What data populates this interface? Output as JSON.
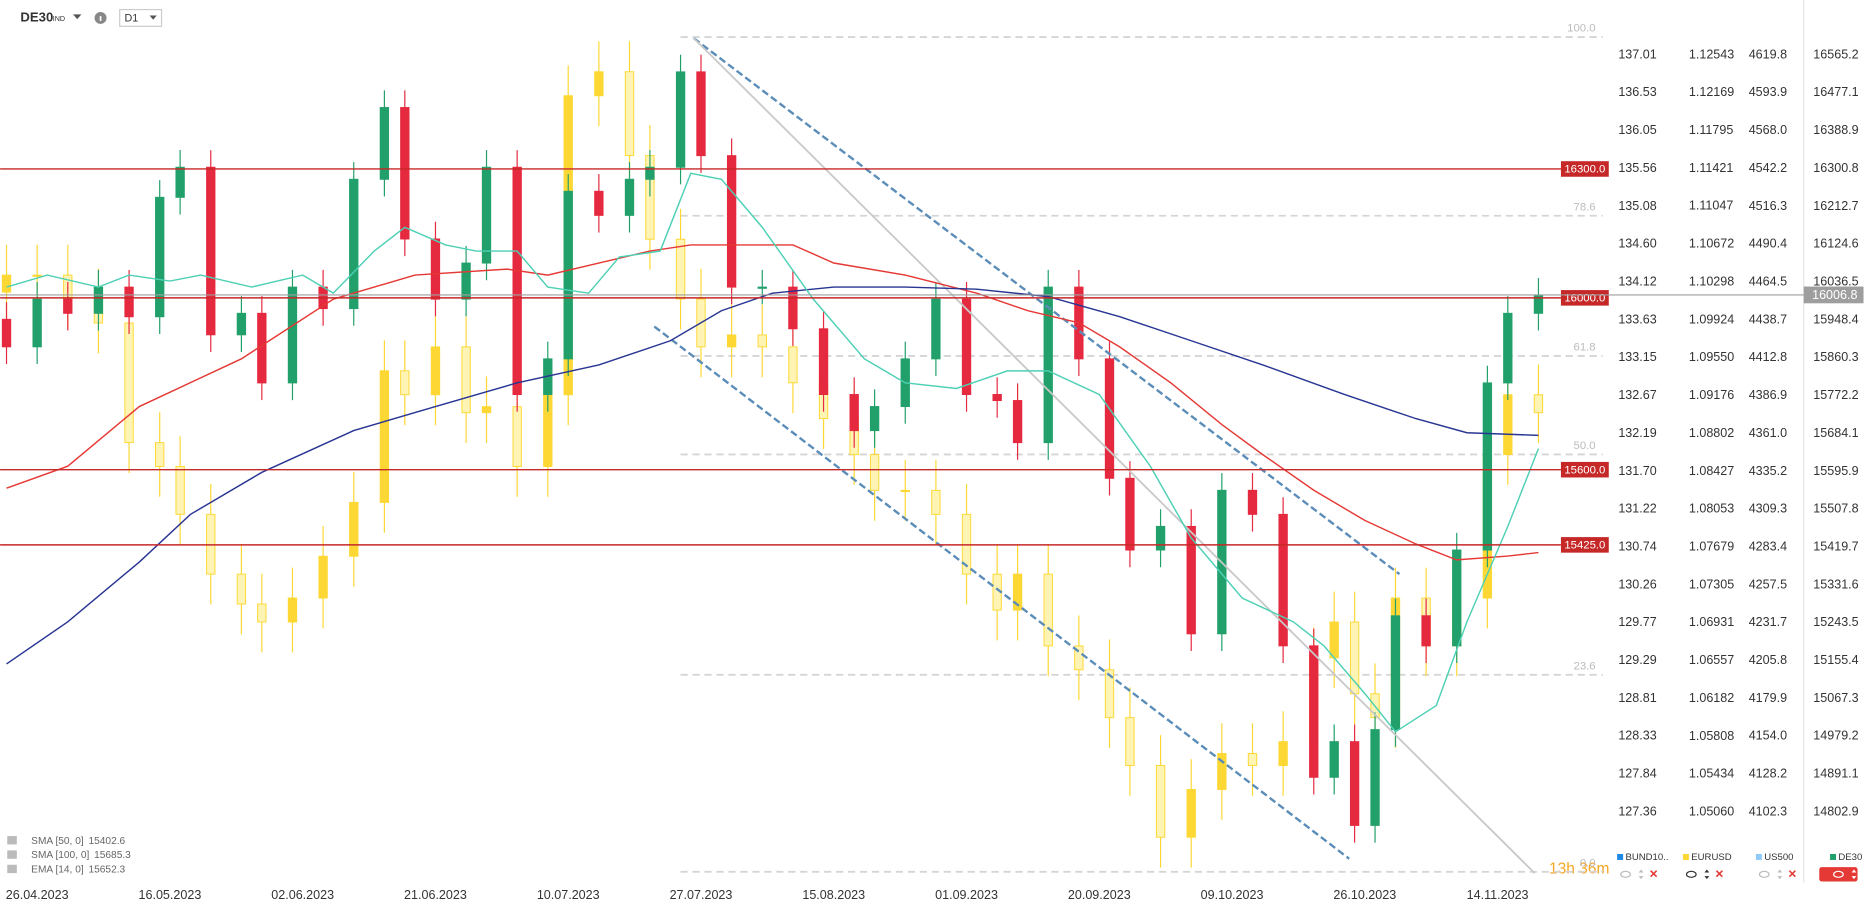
{
  "toolbar": {
    "symbol": "DE30",
    "market": "IND",
    "timeframe": "D1"
  },
  "status": {
    "timer": "13h 36m"
  },
  "chart_data": {
    "type": "candlestick",
    "xlim": [
      -3.63,
      153.3
    ],
    "xticks": [
      {
        "value": 0,
        "label": "26.04.2023"
      },
      {
        "value": 13,
        "label": "16.05.2023"
      },
      {
        "value": 26,
        "label": "02.06.2023"
      },
      {
        "value": 39,
        "label": "21.06.2023"
      },
      {
        "value": 52,
        "label": "10.07.2023"
      },
      {
        "value": 65,
        "label": "27.07.2023"
      },
      {
        "value": 78,
        "label": "15.08.2023"
      },
      {
        "value": 91,
        "label": "01.09.2023"
      },
      {
        "value": 104,
        "label": "20.09.2023"
      },
      {
        "value": 117,
        "label": "09.10.2023"
      },
      {
        "value": 130,
        "label": "26.10.2023"
      },
      {
        "value": 143,
        "label": "14.11.2023"
      }
    ],
    "ylim": [
      14638.7,
      16693.3
    ],
    "yticks": [
      16565.2,
      16477.1,
      16388.9,
      16300.8,
      16212.7,
      16124.6,
      16036.5,
      15948.4,
      15860.3,
      15772.2,
      15684.1,
      15595.9,
      15507.8,
      15419.7,
      15331.6,
      15243.5,
      15155.4,
      15067.3,
      14979.2,
      14891.1,
      14802.9
    ],
    "y2lim": [
      1.04364,
      1.13087
    ],
    "y2ticks": [
      1.12543,
      1.12169,
      1.11795,
      1.11421,
      1.11047,
      1.10672,
      1.10298,
      1.09924,
      {
        "value": 1.0955,
        "label": "1.09550"
      },
      1.09176,
      1.08802,
      1.08427,
      1.08053,
      1.07679,
      1.07305,
      1.06931,
      1.06557,
      1.06182,
      1.05808,
      1.05434,
      {
        "value": 1.0506,
        "label": "1.05060"
      }
    ],
    "series": [
      {
        "name": "DE30",
        "up_color": "#22a06b",
        "down_color": "#e5293f",
        "x": [
          -3,
          0,
          3,
          6,
          9,
          12,
          14,
          17,
          20,
          22,
          25,
          28,
          31,
          34,
          36,
          39,
          42,
          44,
          47,
          50,
          52,
          55,
          58,
          60,
          63,
          65,
          68,
          71,
          74,
          77,
          80,
          82,
          85,
          88,
          91,
          94,
          96,
          99,
          102,
          105,
          107,
          110,
          113,
          116,
          119,
          122,
          125,
          127,
          129,
          131,
          133,
          136,
          139,
          142,
          144,
          147
        ],
        "open": [
          15950,
          15886,
          15997,
          15964,
          16025,
          15956,
          16234,
          16304,
          15914,
          15964,
          15802,
          16025,
          15975,
          16276,
          16443,
          16137,
          15997,
          16081,
          16304,
          15775,
          15858,
          16248,
          16192,
          16276,
          16304,
          16526,
          16331,
          16025,
          16025,
          15928,
          15775,
          15691,
          15747,
          15858,
          15997,
          15775,
          15761,
          15663,
          16025,
          15858,
          15580,
          15413,
          15468,
          15218,
          15552,
          15496,
          15190,
          14884,
          14967,
          14772,
          14995,
          15260,
          15190,
          15413,
          15802,
          15964
        ],
        "high": [
          15990,
          16037,
          16037,
          16065,
          16065,
          16274,
          16344,
          16344,
          16004,
          16004,
          16065,
          16065,
          16316,
          16483,
          16483,
          16177,
          16121,
          16344,
          16344,
          15898,
          16288,
          16288,
          16316,
          16344,
          16566,
          16566,
          16371,
          16065,
          16065,
          15968,
          15815,
          15787,
          15898,
          16037,
          16037,
          15815,
          15801,
          16065,
          16065,
          15898,
          15620,
          15508,
          15508,
          15592,
          15592,
          15536,
          15230,
          15007,
          15007,
          15035,
          15300,
          15300,
          15453,
          15842,
          16004,
          16046
        ],
        "low": [
          15846,
          15846,
          15924,
          15924,
          15916,
          15916,
          16194,
          15874,
          15874,
          15762,
          15762,
          15935,
          15935,
          16236,
          16097,
          15957,
          15957,
          16041,
          15735,
          15735,
          15818,
          16152,
          16152,
          16236,
          16264,
          16291,
          15985,
          15985,
          15888,
          15735,
          15651,
          15651,
          15707,
          15818,
          15735,
          15721,
          15623,
          15623,
          15818,
          15540,
          15373,
          15373,
          15178,
          15178,
          15456,
          15150,
          14844,
          14844,
          14732,
          14732,
          14955,
          15150,
          15150,
          15373,
          15762,
          15924
        ],
        "close": [
          15886,
          15997,
          15964,
          16025,
          15956,
          16234,
          16304,
          15914,
          15964,
          15802,
          16025,
          15975,
          16276,
          16443,
          16137,
          15997,
          16081,
          16304,
          15775,
          15858,
          16248,
          16192,
          16276,
          16304,
          16526,
          16331,
          16025,
          16025,
          15928,
          15775,
          15691,
          15747,
          15858,
          15997,
          15775,
          15761,
          15663,
          16025,
          15858,
          15580,
          15413,
          15468,
          15218,
          15552,
          15496,
          15190,
          14884,
          14967,
          14772,
          14995,
          15260,
          15190,
          15413,
          15802,
          15964,
          16006
        ]
      },
      {
        "name": "EURUSD",
        "color": "#fdd835",
        "axis": "y2",
        "x": [
          -3,
          0,
          3,
          6,
          9,
          12,
          14,
          17,
          20,
          22,
          25,
          28,
          31,
          34,
          36,
          39,
          42,
          44,
          47,
          50,
          52,
          55,
          58,
          60,
          63,
          65,
          68,
          71,
          74,
          77,
          80,
          82,
          85,
          88,
          91,
          94,
          96,
          99,
          102,
          105,
          107,
          110,
          113,
          116,
          119,
          122,
          125,
          127,
          129,
          131,
          133,
          136,
          139,
          142,
          144,
          147
        ],
        "open": [
          1.102,
          1.10368,
          1.10368,
          1.10132,
          1.09895,
          1.08713,
          1.08477,
          1.08004,
          1.07413,
          1.07118,
          1.0694,
          1.07177,
          1.0759,
          1.08122,
          1.09423,
          1.09186,
          1.09659,
          1.09009,
          1.09068,
          1.08477,
          1.09186,
          1.12141,
          1.12378,
          1.1155,
          1.10723,
          1.10132,
          1.09659,
          1.09777,
          1.09659,
          1.09304,
          1.0895,
          1.08595,
          1.08241,
          1.08241,
          1.08004,
          1.07413,
          1.07058,
          1.07413,
          1.06704,
          1.06468,
          1.05995,
          1.05522,
          1.04813,
          1.05285,
          1.0564,
          1.05522,
          1.05758,
          1.06586,
          1.0694,
          1.06231,
          1.05995,
          1.07177,
          1.06704,
          1.07177,
          1.08595,
          1.09186
        ],
        "high": [
          1.10668,
          1.10668,
          1.10668,
          1.10432,
          1.10195,
          1.09013,
          1.08777,
          1.08304,
          1.07713,
          1.07418,
          1.07477,
          1.0789,
          1.08422,
          1.09723,
          1.09723,
          1.09959,
          1.09959,
          1.09368,
          1.09368,
          1.09486,
          1.12441,
          1.12678,
          1.12678,
          1.1185,
          1.11023,
          1.10432,
          1.10077,
          1.10077,
          1.09959,
          1.09604,
          1.0925,
          1.08895,
          1.08541,
          1.08541,
          1.08304,
          1.07713,
          1.07713,
          1.07713,
          1.07004,
          1.06768,
          1.06295,
          1.05822,
          1.05585,
          1.0594,
          1.0594,
          1.06058,
          1.06886,
          1.0724,
          1.0724,
          1.06531,
          1.07477,
          1.07477,
          1.07477,
          1.08895,
          1.09486,
          1.09486
        ],
        "low": [
          1.099,
          1.10068,
          1.09832,
          1.09595,
          1.08413,
          1.08177,
          1.07704,
          1.07113,
          1.06818,
          1.0664,
          1.0664,
          1.06877,
          1.0729,
          1.07822,
          1.08886,
          1.08886,
          1.08709,
          1.08709,
          1.08177,
          1.08177,
          1.08886,
          1.11841,
          1.1125,
          1.10423,
          1.09832,
          1.09359,
          1.09359,
          1.09359,
          1.09004,
          1.0865,
          1.08295,
          1.07941,
          1.07941,
          1.07704,
          1.07113,
          1.06758,
          1.06758,
          1.06404,
          1.06168,
          1.05695,
          1.05222,
          1.04513,
          1.04513,
          1.04985,
          1.05222,
          1.05222,
          1.05458,
          1.06286,
          1.05931,
          1.05695,
          1.05695,
          1.06404,
          1.06404,
          1.06877,
          1.08295,
          1.08709
        ],
        "close": [
          1.10368,
          1.10368,
          1.10132,
          1.09895,
          1.08713,
          1.08477,
          1.08004,
          1.07413,
          1.07118,
          1.0694,
          1.07177,
          1.0759,
          1.08122,
          1.09423,
          1.09186,
          1.09659,
          1.09009,
          1.09068,
          1.08477,
          1.09186,
          1.12141,
          1.12378,
          1.1155,
          1.10723,
          1.10132,
          1.09659,
          1.09777,
          1.09659,
          1.09304,
          1.0895,
          1.08595,
          1.08241,
          1.08241,
          1.08004,
          1.07413,
          1.07058,
          1.07413,
          1.06704,
          1.06468,
          1.05995,
          1.05522,
          1.04813,
          1.05285,
          1.0564,
          1.05522,
          1.05758,
          1.06586,
          1.0694,
          1.06231,
          1.05995,
          1.07177,
          1.06704,
          1.07177,
          1.08595,
          1.09186,
          1.09009
        ]
      }
    ],
    "hidden_series": [
      {
        "name": "BUND10..",
        "color": "#1e88e5",
        "ticks": [
          "137.01",
          "136.53",
          "136.05",
          "135.56",
          "135.08",
          "134.60",
          "134.12",
          "133.63",
          "133.15",
          "132.67",
          "132.19",
          "131.70",
          "131.22",
          "130.74",
          "130.26",
          "129.77",
          "129.29",
          "128.81",
          "128.33",
          "127.84",
          "127.36"
        ]
      },
      {
        "name": "US500",
        "color": "#90caf9",
        "ticks": [
          "4619.8",
          "4593.9",
          "4568.0",
          "4542.2",
          "4516.3",
          "4490.4",
          "4464.5",
          "4438.7",
          "4412.8",
          "4386.9",
          "4361.0",
          "4335.2",
          "4309.3",
          "4283.4",
          "4257.5",
          "4231.7",
          "4205.8",
          "4179.9",
          "4154.0",
          "4128.2",
          "4102.3"
        ]
      }
    ],
    "indicators": [
      {
        "name": "SMA [50, 0]",
        "value": 15402.6,
        "color": "#e53935",
        "x": [
          -3,
          3,
          10,
          20,
          29,
          37,
          46,
          50,
          55,
          60,
          64,
          69,
          74,
          78,
          85,
          92,
          97,
          102,
          106,
          111,
          116,
          120,
          125,
          130,
          135,
          139,
          144,
          147
        ],
        "values": [
          15557,
          15608,
          15747,
          15858,
          15997,
          16053,
          16067,
          16053,
          16081,
          16109,
          16123,
          16123,
          16123,
          16081,
          16053,
          16011,
          15970,
          15942,
          15886,
          15802,
          15705,
          15635,
          15552,
          15482,
          15427,
          15390,
          15399,
          15407
        ]
      },
      {
        "name": "SMA [100, 0]",
        "value": 15685.3,
        "color": "#283593",
        "x": [
          -3,
          3,
          10,
          15,
          22,
          31,
          39,
          47,
          55,
          62,
          67,
          72,
          78,
          85,
          92,
          99,
          106,
          113,
          120,
          128,
          135,
          140,
          147
        ],
        "values": [
          15148,
          15246,
          15385,
          15496,
          15594,
          15691,
          15747,
          15802,
          15844,
          15900,
          15970,
          16011,
          16025,
          16025,
          16020,
          16003,
          15956,
          15900,
          15844,
          15775,
          15719,
          15686,
          15680
        ]
      },
      {
        "name": "EMA [14, 0]",
        "value": 15652.3,
        "color": "#4dd0b4",
        "x": [
          -3,
          1,
          6,
          9,
          13,
          16,
          21,
          26,
          29,
          33,
          36,
          40,
          43,
          47,
          50,
          54,
          57,
          61,
          64,
          67,
          71,
          76,
          81,
          85,
          90,
          95,
          99,
          104,
          109,
          113,
          118,
          123,
          126,
          130,
          133,
          137,
          140,
          144,
          147
        ],
        "values": [
          16025,
          16053,
          16025,
          16053,
          16039,
          16053,
          16025,
          16053,
          16011,
          16109,
          16164,
          16123,
          16109,
          16109,
          16025,
          16011,
          16095,
          16109,
          16290,
          16276,
          16164,
          15997,
          15858,
          15802,
          15789,
          15830,
          15830,
          15775,
          15608,
          15441,
          15301,
          15246,
          15190,
          15079,
          14990,
          15051,
          15246,
          15468,
          15649
        ]
      }
    ],
    "levels": [
      {
        "value": 16300,
        "label": "16300.0"
      },
      {
        "value": 16000,
        "label": "16000.0"
      },
      {
        "value": 15600,
        "label": "15600.0"
      },
      {
        "value": 15425,
        "label": "15425.0"
      }
    ],
    "level_color": "#c62828",
    "last_price": 16006.8,
    "fibonacci": {
      "high": 16607,
      "low": 14664,
      "levels": [
        {
          "value": 100,
          "label": "100.0"
        },
        78.6,
        61.8,
        {
          "value": 50,
          "label": "50.0"
        },
        23.6,
        {
          "value": 0,
          "label": "0.0"
        }
      ]
    }
  }
}
